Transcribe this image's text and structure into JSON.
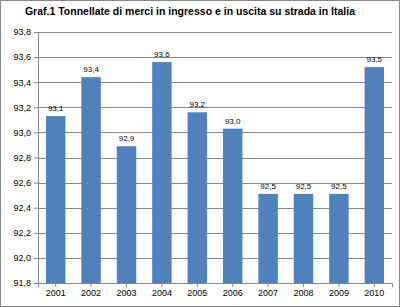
{
  "chart_data": {
    "type": "bar",
    "title": "Graf.1 Tonnellate di merci in ingresso e in uscita su strada in Italia",
    "categories": [
      "2001",
      "2002",
      "2003",
      "2004",
      "2005",
      "2006",
      "2007",
      "2008",
      "2009",
      "2010"
    ],
    "values": [
      93.13,
      93.44,
      92.89,
      93.56,
      93.16,
      93.03,
      92.51,
      92.51,
      92.51,
      93.52
    ],
    "value_labels": [
      "93,1",
      "93,4",
      "92,9",
      "93,6",
      "93,2",
      "93,0",
      "92,5",
      "92,5",
      "92,5",
      "93,5"
    ],
    "data_labels": true,
    "color": "#4f81bd",
    "ylim": [
      91.8,
      93.8
    ],
    "yticks": [
      {
        "value": 91.8,
        "label": "91,8"
      },
      {
        "value": 92.0,
        "label": "92,0"
      },
      {
        "value": 92.2,
        "label": "92,2"
      },
      {
        "value": 92.4,
        "label": "92,4"
      },
      {
        "value": 92.6,
        "label": "92,6"
      },
      {
        "value": 92.8,
        "label": "92,8"
      },
      {
        "value": 93.0,
        "label": "93,0"
      },
      {
        "value": 93.2,
        "label": "93,2"
      },
      {
        "value": 93.4,
        "label": "93,4"
      },
      {
        "value": 93.6,
        "label": "93,6"
      },
      {
        "value": 93.8,
        "label": "93,8"
      }
    ],
    "grid": true
  }
}
